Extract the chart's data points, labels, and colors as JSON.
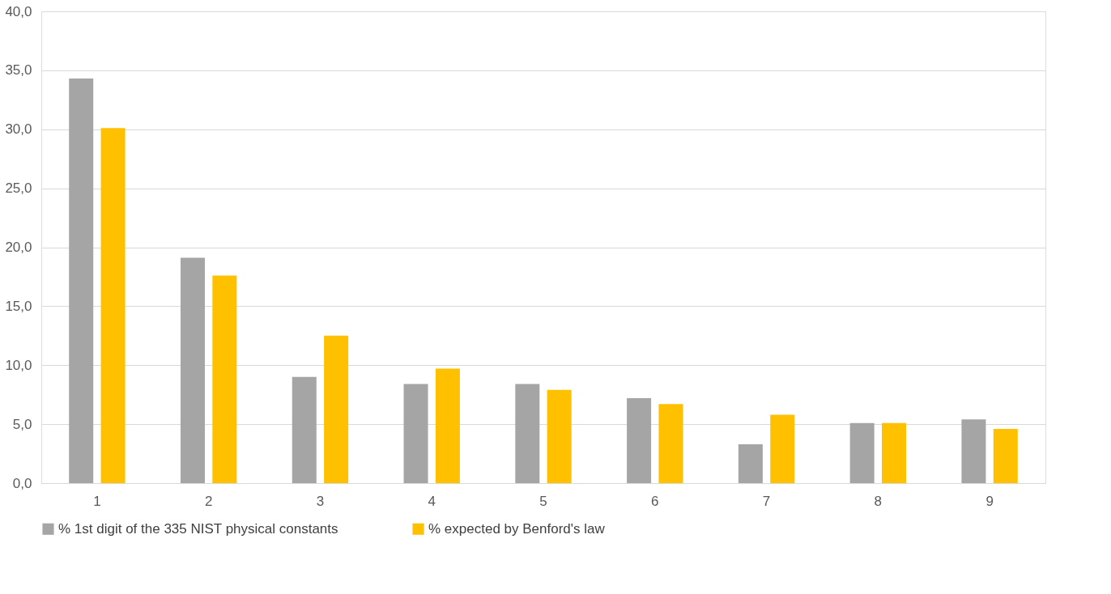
{
  "chart_data": {
    "type": "bar",
    "categories": [
      "1",
      "2",
      "3",
      "4",
      "5",
      "6",
      "7",
      "8",
      "9"
    ],
    "series": [
      {
        "name": "% 1st digit of the 335 NIST physical constants",
        "color": "#a5a5a5",
        "values": [
          34.3,
          19.1,
          9.0,
          8.4,
          8.4,
          7.2,
          3.3,
          5.1,
          5.4
        ]
      },
      {
        "name": "% expected by Benford's law",
        "color": "#ffc000",
        "values": [
          30.1,
          17.6,
          12.5,
          9.7,
          7.9,
          6.7,
          5.8,
          5.1,
          4.6
        ]
      }
    ],
    "ylim": [
      0,
      40
    ],
    "yticks": [
      {
        "value": 0,
        "label": "0,0"
      },
      {
        "value": 5,
        "label": "5,0"
      },
      {
        "value": 10,
        "label": "10,0"
      },
      {
        "value": 15,
        "label": "15,0"
      },
      {
        "value": 20,
        "label": "20,0"
      },
      {
        "value": 25,
        "label": "25,0"
      },
      {
        "value": 30,
        "label": "30,0"
      },
      {
        "value": 35,
        "label": "35,0"
      },
      {
        "value": 40,
        "label": "40,0"
      }
    ],
    "grid": "y",
    "legend": "bottom"
  }
}
